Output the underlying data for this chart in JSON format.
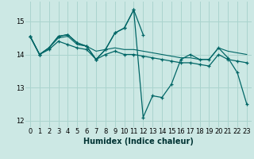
{
  "xlabel": "Humidex (Indice chaleur)",
  "bg_color": "#cce8e4",
  "grid_color": "#aad4ce",
  "line_color": "#006666",
  "xlim": [
    -0.5,
    23.5
  ],
  "ylim": [
    11.8,
    15.6
  ],
  "yticks": [
    12,
    13,
    14,
    15
  ],
  "xticks": [
    0,
    1,
    2,
    3,
    4,
    5,
    6,
    7,
    8,
    9,
    10,
    11,
    12,
    13,
    14,
    15,
    16,
    17,
    18,
    19,
    20,
    21,
    22,
    23
  ],
  "line1_x": [
    0,
    1,
    2,
    3,
    4,
    5,
    6,
    7,
    8,
    9,
    10,
    11,
    12,
    13,
    14,
    15,
    16,
    17,
    18,
    19,
    20,
    21,
    22,
    23
  ],
  "line1_y": [
    14.55,
    14.0,
    14.2,
    14.55,
    14.6,
    14.35,
    14.25,
    13.85,
    14.15,
    14.65,
    14.8,
    15.35,
    12.1,
    12.75,
    12.7,
    13.1,
    13.85,
    14.0,
    13.85,
    13.85,
    14.2,
    13.9,
    13.45,
    12.5
  ],
  "line2_x": [
    0,
    1,
    2,
    3,
    4,
    5,
    6,
    7,
    8,
    9,
    10,
    11,
    12,
    13,
    14,
    15,
    16,
    17,
    18,
    19,
    20,
    21,
    22,
    23
  ],
  "line2_y": [
    14.55,
    14.0,
    14.2,
    14.5,
    14.55,
    14.3,
    14.25,
    14.1,
    14.15,
    14.2,
    14.15,
    14.15,
    14.1,
    14.05,
    14.0,
    13.95,
    13.9,
    13.9,
    13.85,
    13.85,
    14.2,
    14.1,
    14.05,
    14.0
  ],
  "line3_x": [
    0,
    1,
    2,
    3,
    4,
    5,
    6,
    7,
    8,
    9,
    10,
    11,
    12
  ],
  "line3_y": [
    14.55,
    14.0,
    14.2,
    14.55,
    14.6,
    14.35,
    14.25,
    13.85,
    14.15,
    14.65,
    14.8,
    15.35,
    14.6
  ],
  "line4_x": [
    0,
    1,
    2,
    3,
    4,
    5,
    6,
    7,
    8,
    9,
    10,
    11,
    12,
    13,
    14,
    15,
    16,
    17,
    18,
    19,
    20,
    21,
    22,
    23
  ],
  "line4_y": [
    14.55,
    14.0,
    14.15,
    14.4,
    14.3,
    14.2,
    14.15,
    13.85,
    14.0,
    14.1,
    14.0,
    14.0,
    13.95,
    13.9,
    13.85,
    13.8,
    13.75,
    13.75,
    13.7,
    13.65,
    14.0,
    13.85,
    13.8,
    13.75
  ]
}
